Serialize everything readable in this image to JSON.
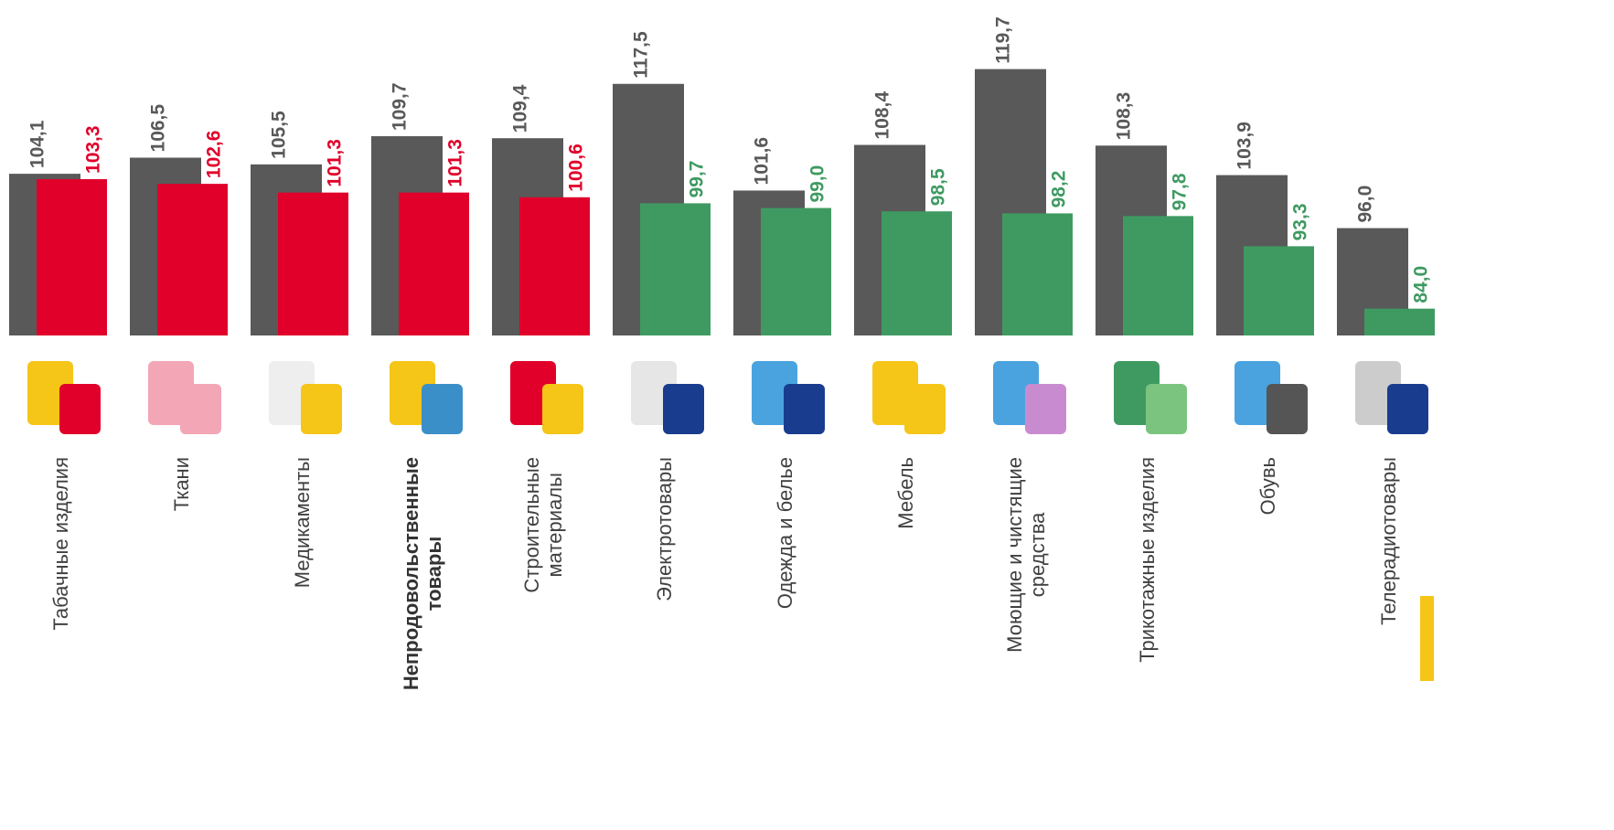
{
  "chart_data": {
    "type": "bar",
    "categories": [
      "Табачные изделия",
      "Ткани",
      "Медикаменты",
      "Непродовольственные\nтовары",
      "Строительные\nматериалы",
      "Электротовары",
      "Одежда и белье",
      "Мебель",
      "Моющие и чистящие\nсредства",
      "Трикотажные изделия",
      "Обувь",
      "Телерадиотовары"
    ],
    "bold_categories": [
      3
    ],
    "series": [
      {
        "color": "#595959",
        "values": [
          104.1,
          106.5,
          105.5,
          109.7,
          109.4,
          117.5,
          101.6,
          108.4,
          119.7,
          108.3,
          103.9,
          96.0
        ],
        "value_labels": [
          "104,1",
          "106,5",
          "105,5",
          "109,7",
          "109,4",
          "117,5",
          "101,6",
          "108,4",
          "119,7",
          "108,3",
          "103,9",
          "96,0"
        ]
      },
      {
        "colors": [
          "#e0002a",
          "#e0002a",
          "#e0002a",
          "#e0002a",
          "#e0002a",
          "#3f9a62",
          "#3f9a62",
          "#3f9a62",
          "#3f9a62",
          "#3f9a62",
          "#3f9a62",
          "#3f9a62"
        ],
        "values": [
          103.3,
          102.6,
          101.3,
          101.3,
          100.6,
          99.7,
          99.0,
          98.5,
          98.2,
          97.8,
          93.3,
          84.0
        ],
        "value_labels": [
          "103,3",
          "102,6",
          "101,3",
          "101,3",
          "100,6",
          "99,7",
          "99,0",
          "98,5",
          "98,2",
          "97,8",
          "93,3",
          "84,0"
        ]
      }
    ],
    "ylim": [
      80,
      130
    ],
    "grid": false
  }
}
